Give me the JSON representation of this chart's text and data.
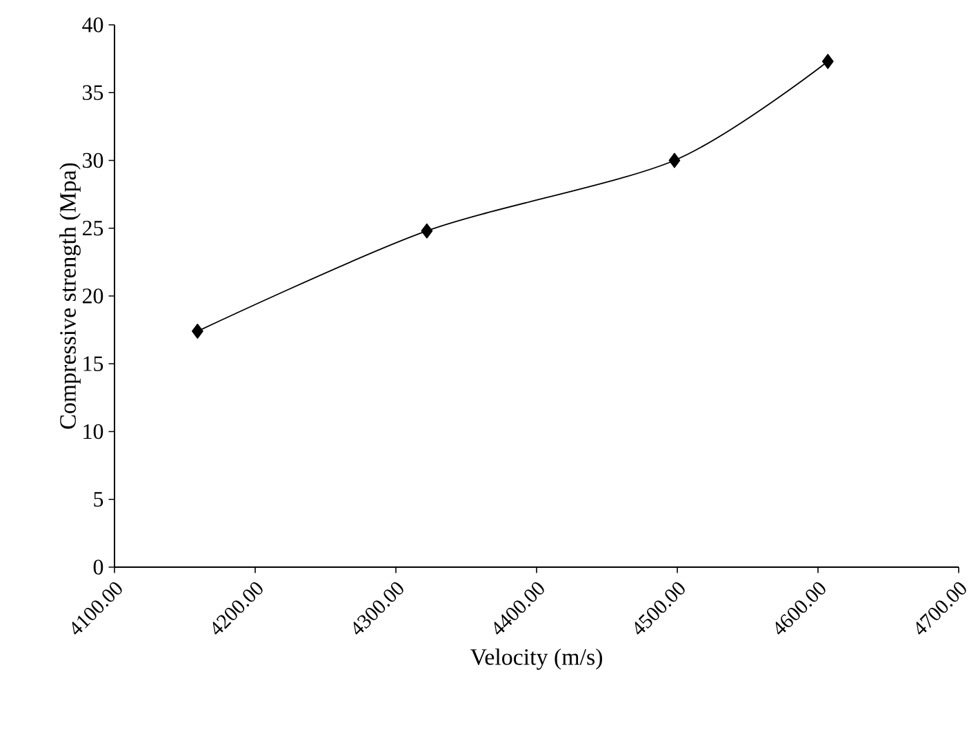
{
  "chart_data": {
    "type": "line",
    "xlabel": "Velocity (m/s)",
    "ylabel": "Compressive strength (Mpa)",
    "x": [
      4159,
      4322,
      4498,
      4607
    ],
    "series": [
      {
        "color": "#000000",
        "values": [
          17.4,
          24.8,
          30.0,
          37.3
        ]
      }
    ],
    "xlim": [
      4100,
      4700
    ],
    "xticks": [
      {
        "value": 4100,
        "label": "4100.00"
      },
      {
        "value": 4200,
        "label": "4200.00"
      },
      {
        "value": 4300,
        "label": "4300.00"
      },
      {
        "value": 4400,
        "label": "4400.00"
      },
      {
        "value": 4500,
        "label": "4500.00"
      },
      {
        "value": 4600,
        "label": "4600.00"
      },
      {
        "value": 4700,
        "label": "4700.00"
      }
    ],
    "ylim": [
      0,
      40
    ],
    "yticks": [
      0,
      5,
      10,
      15,
      20,
      25,
      30,
      35,
      40
    ],
    "marker": "diamond",
    "line_style": "solid"
  }
}
